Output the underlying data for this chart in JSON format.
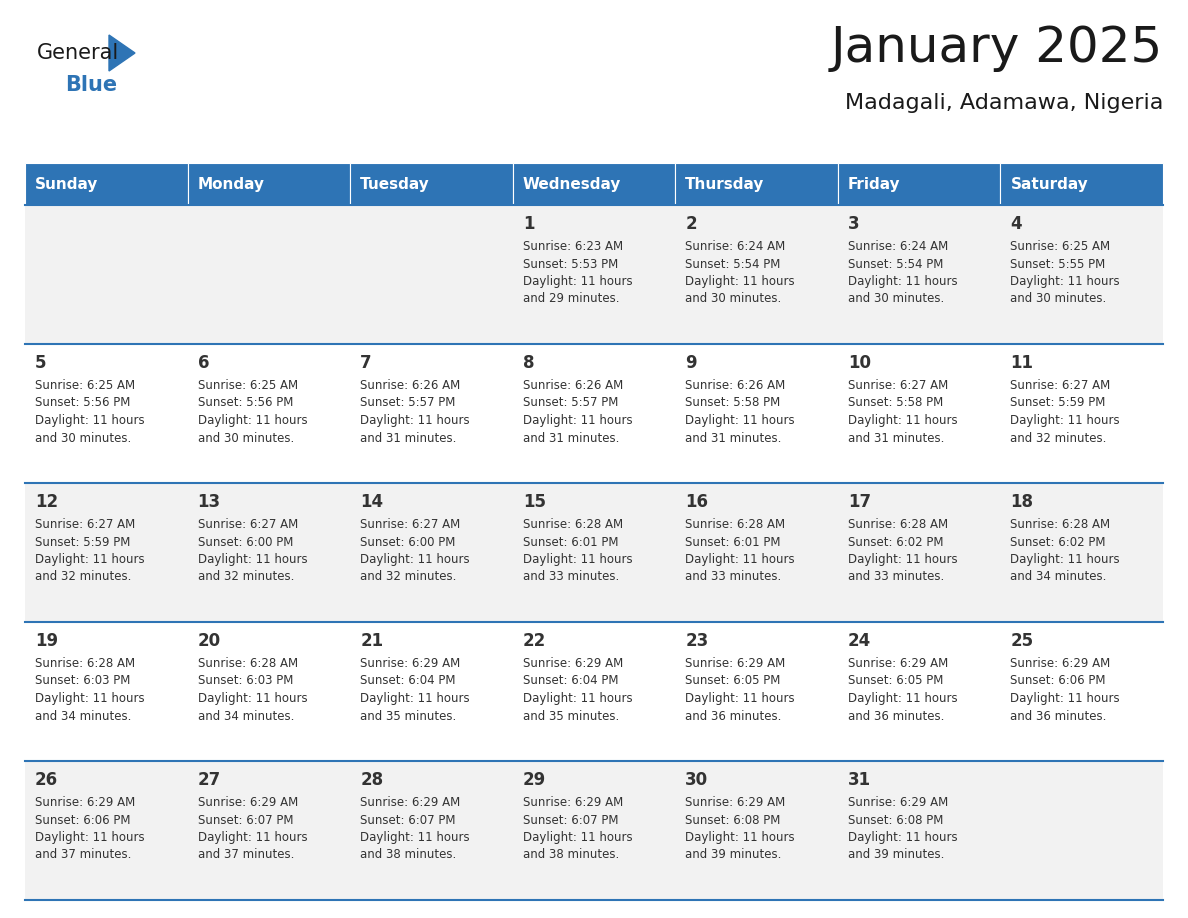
{
  "title": "January 2025",
  "subtitle": "Madagali, Adamawa, Nigeria",
  "header_color": "#2E74B5",
  "header_text_color": "#FFFFFF",
  "cell_bg_even": "#F2F2F2",
  "cell_bg_odd": "#FFFFFF",
  "line_color": "#2E74B5",
  "text_color": "#333333",
  "days_of_week": [
    "Sunday",
    "Monday",
    "Tuesday",
    "Wednesday",
    "Thursday",
    "Friday",
    "Saturday"
  ],
  "calendar_data": [
    [
      {
        "day": "",
        "sunrise": "",
        "sunset": "",
        "daylight_h": "",
        "daylight_m": ""
      },
      {
        "day": "",
        "sunrise": "",
        "sunset": "",
        "daylight_h": "",
        "daylight_m": ""
      },
      {
        "day": "",
        "sunrise": "",
        "sunset": "",
        "daylight_h": "",
        "daylight_m": ""
      },
      {
        "day": "1",
        "sunrise": "6:23 AM",
        "sunset": "5:53 PM",
        "daylight_h": "11",
        "daylight_m": "29"
      },
      {
        "day": "2",
        "sunrise": "6:24 AM",
        "sunset": "5:54 PM",
        "daylight_h": "11",
        "daylight_m": "30"
      },
      {
        "day": "3",
        "sunrise": "6:24 AM",
        "sunset": "5:54 PM",
        "daylight_h": "11",
        "daylight_m": "30"
      },
      {
        "day": "4",
        "sunrise": "6:25 AM",
        "sunset": "5:55 PM",
        "daylight_h": "11",
        "daylight_m": "30"
      }
    ],
    [
      {
        "day": "5",
        "sunrise": "6:25 AM",
        "sunset": "5:56 PM",
        "daylight_h": "11",
        "daylight_m": "30"
      },
      {
        "day": "6",
        "sunrise": "6:25 AM",
        "sunset": "5:56 PM",
        "daylight_h": "11",
        "daylight_m": "30"
      },
      {
        "day": "7",
        "sunrise": "6:26 AM",
        "sunset": "5:57 PM",
        "daylight_h": "11",
        "daylight_m": "31"
      },
      {
        "day": "8",
        "sunrise": "6:26 AM",
        "sunset": "5:57 PM",
        "daylight_h": "11",
        "daylight_m": "31"
      },
      {
        "day": "9",
        "sunrise": "6:26 AM",
        "sunset": "5:58 PM",
        "daylight_h": "11",
        "daylight_m": "31"
      },
      {
        "day": "10",
        "sunrise": "6:27 AM",
        "sunset": "5:58 PM",
        "daylight_h": "11",
        "daylight_m": "31"
      },
      {
        "day": "11",
        "sunrise": "6:27 AM",
        "sunset": "5:59 PM",
        "daylight_h": "11",
        "daylight_m": "32"
      }
    ],
    [
      {
        "day": "12",
        "sunrise": "6:27 AM",
        "sunset": "5:59 PM",
        "daylight_h": "11",
        "daylight_m": "32"
      },
      {
        "day": "13",
        "sunrise": "6:27 AM",
        "sunset": "6:00 PM",
        "daylight_h": "11",
        "daylight_m": "32"
      },
      {
        "day": "14",
        "sunrise": "6:27 AM",
        "sunset": "6:00 PM",
        "daylight_h": "11",
        "daylight_m": "32"
      },
      {
        "day": "15",
        "sunrise": "6:28 AM",
        "sunset": "6:01 PM",
        "daylight_h": "11",
        "daylight_m": "33"
      },
      {
        "day": "16",
        "sunrise": "6:28 AM",
        "sunset": "6:01 PM",
        "daylight_h": "11",
        "daylight_m": "33"
      },
      {
        "day": "17",
        "sunrise": "6:28 AM",
        "sunset": "6:02 PM",
        "daylight_h": "11",
        "daylight_m": "33"
      },
      {
        "day": "18",
        "sunrise": "6:28 AM",
        "sunset": "6:02 PM",
        "daylight_h": "11",
        "daylight_m": "34"
      }
    ],
    [
      {
        "day": "19",
        "sunrise": "6:28 AM",
        "sunset": "6:03 PM",
        "daylight_h": "11",
        "daylight_m": "34"
      },
      {
        "day": "20",
        "sunrise": "6:28 AM",
        "sunset": "6:03 PM",
        "daylight_h": "11",
        "daylight_m": "34"
      },
      {
        "day": "21",
        "sunrise": "6:29 AM",
        "sunset": "6:04 PM",
        "daylight_h": "11",
        "daylight_m": "35"
      },
      {
        "day": "22",
        "sunrise": "6:29 AM",
        "sunset": "6:04 PM",
        "daylight_h": "11",
        "daylight_m": "35"
      },
      {
        "day": "23",
        "sunrise": "6:29 AM",
        "sunset": "6:05 PM",
        "daylight_h": "11",
        "daylight_m": "36"
      },
      {
        "day": "24",
        "sunrise": "6:29 AM",
        "sunset": "6:05 PM",
        "daylight_h": "11",
        "daylight_m": "36"
      },
      {
        "day": "25",
        "sunrise": "6:29 AM",
        "sunset": "6:06 PM",
        "daylight_h": "11",
        "daylight_m": "36"
      }
    ],
    [
      {
        "day": "26",
        "sunrise": "6:29 AM",
        "sunset": "6:06 PM",
        "daylight_h": "11",
        "daylight_m": "37"
      },
      {
        "day": "27",
        "sunrise": "6:29 AM",
        "sunset": "6:07 PM",
        "daylight_h": "11",
        "daylight_m": "37"
      },
      {
        "day": "28",
        "sunrise": "6:29 AM",
        "sunset": "6:07 PM",
        "daylight_h": "11",
        "daylight_m": "38"
      },
      {
        "day": "29",
        "sunrise": "6:29 AM",
        "sunset": "6:07 PM",
        "daylight_h": "11",
        "daylight_m": "38"
      },
      {
        "day": "30",
        "sunrise": "6:29 AM",
        "sunset": "6:08 PM",
        "daylight_h": "11",
        "daylight_m": "39"
      },
      {
        "day": "31",
        "sunrise": "6:29 AM",
        "sunset": "6:08 PM",
        "daylight_h": "11",
        "daylight_m": "39"
      },
      {
        "day": "",
        "sunrise": "",
        "sunset": "",
        "daylight_h": "",
        "daylight_m": ""
      }
    ]
  ]
}
